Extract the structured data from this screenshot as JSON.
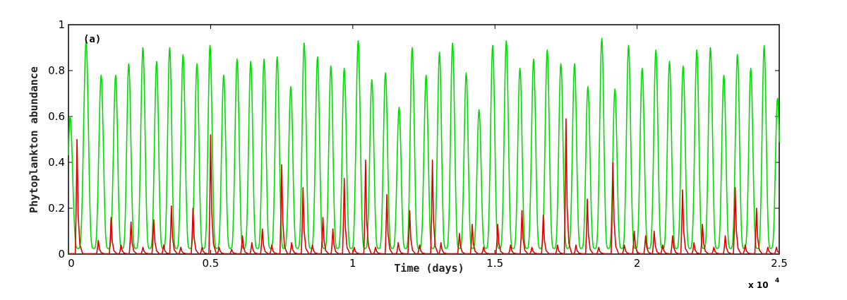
{
  "chart_data": {
    "type": "line",
    "annotation": "(a)",
    "xlabel": "Time (days)",
    "ylabel": "Phytoplankton abundance",
    "x_multiplier_base": "x 10",
    "x_multiplier_exp": "4",
    "xlim": [
      0,
      2.5
    ],
    "ylim": [
      0,
      1
    ],
    "x_ticks": [
      "0",
      "0.5",
      "1",
      "1.5",
      "2",
      "2.5"
    ],
    "y_ticks": [
      "0",
      "0.2",
      "0.4",
      "0.6",
      "0.8",
      "1"
    ],
    "grid": false,
    "colors": {
      "green": "#00dd00",
      "red": "#dd0000"
    },
    "series": [
      {
        "color": "green",
        "trough": 0.025,
        "peaks_x": [
          0.006,
          0.062,
          0.115,
          0.166,
          0.212,
          0.262,
          0.31,
          0.356,
          0.403,
          0.452,
          0.498,
          0.546,
          0.593,
          0.641,
          0.688,
          0.734,
          0.782,
          0.829,
          0.876,
          0.923,
          0.97,
          1.019,
          1.067,
          1.115,
          1.163,
          1.209,
          1.258,
          1.305,
          1.351,
          1.399,
          1.444,
          1.492,
          1.54,
          1.588,
          1.636,
          1.684,
          1.732,
          1.78,
          1.827,
          1.876,
          1.922,
          1.97,
          2.018,
          2.066,
          2.114,
          2.162,
          2.21,
          2.258,
          2.305,
          2.353,
          2.4,
          2.447,
          2.494
        ],
        "peaks_y": [
          0.6,
          0.93,
          0.78,
          0.78,
          0.83,
          0.9,
          0.84,
          0.9,
          0.87,
          0.83,
          0.91,
          0.78,
          0.85,
          0.84,
          0.85,
          0.86,
          0.73,
          0.92,
          0.86,
          0.82,
          0.81,
          0.93,
          0.76,
          0.79,
          0.64,
          0.9,
          0.78,
          0.88,
          0.92,
          0.79,
          0.63,
          0.91,
          0.93,
          0.81,
          0.85,
          0.89,
          0.83,
          0.83,
          0.73,
          0.94,
          0.72,
          0.91,
          0.81,
          0.89,
          0.84,
          0.82,
          0.89,
          0.9,
          0.78,
          0.87,
          0.81,
          0.91,
          0.68
        ]
      },
      {
        "color": "red",
        "baseline": 0.002,
        "peaks_x": [
          0.03,
          0.105,
          0.15,
          0.185,
          0.22,
          0.262,
          0.3,
          0.335,
          0.362,
          0.395,
          0.438,
          0.47,
          0.5,
          0.53,
          0.574,
          0.612,
          0.645,
          0.682,
          0.715,
          0.75,
          0.785,
          0.825,
          0.858,
          0.895,
          0.93,
          0.97,
          1.005,
          1.045,
          1.08,
          1.12,
          1.16,
          1.2,
          1.235,
          1.28,
          1.31,
          1.375,
          1.42,
          1.46,
          1.51,
          1.555,
          1.595,
          1.63,
          1.67,
          1.72,
          1.75,
          1.785,
          1.825,
          1.865,
          1.915,
          1.955,
          1.99,
          2.03,
          2.06,
          2.09,
          2.125,
          2.16,
          2.2,
          2.23,
          2.27,
          2.31,
          2.345,
          2.38,
          2.42,
          2.46,
          2.49
        ],
        "peaks_y": [
          0.5,
          0.06,
          0.16,
          0.04,
          0.14,
          0.03,
          0.15,
          0.04,
          0.21,
          0.03,
          0.2,
          0.03,
          0.52,
          0.03,
          0.02,
          0.08,
          0.05,
          0.11,
          0.04,
          0.39,
          0.05,
          0.29,
          0.04,
          0.16,
          0.11,
          0.33,
          0.03,
          0.41,
          0.03,
          0.26,
          0.05,
          0.19,
          0.04,
          0.41,
          0.05,
          0.09,
          0.13,
          0.03,
          0.13,
          0.04,
          0.19,
          0.03,
          0.17,
          0.04,
          0.59,
          0.04,
          0.24,
          0.03,
          0.4,
          0.04,
          0.1,
          0.08,
          0.1,
          0.04,
          0.08,
          0.28,
          0.05,
          0.13,
          0.03,
          0.08,
          0.29,
          0.04,
          0.2,
          0.03,
          0.03
        ]
      }
    ]
  }
}
